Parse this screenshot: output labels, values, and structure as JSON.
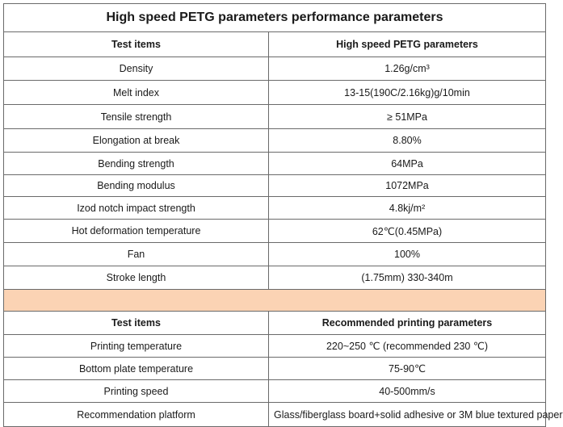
{
  "title": "High speed PETG parameters performance parameters",
  "performance": {
    "header": {
      "item": "Test items",
      "value": "High speed PETG parameters"
    },
    "rows": [
      {
        "item": "Density",
        "value": "1.26g/cm³"
      },
      {
        "item": "Melt index",
        "value": "13-15(190C/2.16kg)g/10min"
      },
      {
        "item": "Tensile strength",
        "value": "≥ 51MPa"
      },
      {
        "item": "Elongation at break",
        "value": "8.80%"
      },
      {
        "item": "Bending strength",
        "value": "64MPa"
      },
      {
        "item": "Bending modulus",
        "value": "1072MPa"
      },
      {
        "item": "Izod notch impact strength",
        "value": "4.8kj/m²"
      },
      {
        "item": "Hot deformation temperature",
        "value": "62℃(0.45MPa)"
      },
      {
        "item": "Fan",
        "value": "100%"
      },
      {
        "item": "Stroke length",
        "value": "(1.75mm) 330-340m"
      }
    ]
  },
  "printing": {
    "header": {
      "item": "Test items",
      "value": "Recommended printing parameters"
    },
    "rows": [
      {
        "item": "Printing temperature",
        "value": "220~250 ℃ (recommended 230 ℃)"
      },
      {
        "item": "Bottom plate temperature",
        "value": "75-90℃"
      },
      {
        "item": "Printing speed",
        "value": "40-500mm/s"
      },
      {
        "item": "Recommendation platform",
        "value": "Glass/fiberglass board+solid adhesive or 3M blue textured paper"
      }
    ]
  },
  "colors": {
    "separator": "#fbd3b4",
    "border": "#6a6a6a"
  }
}
